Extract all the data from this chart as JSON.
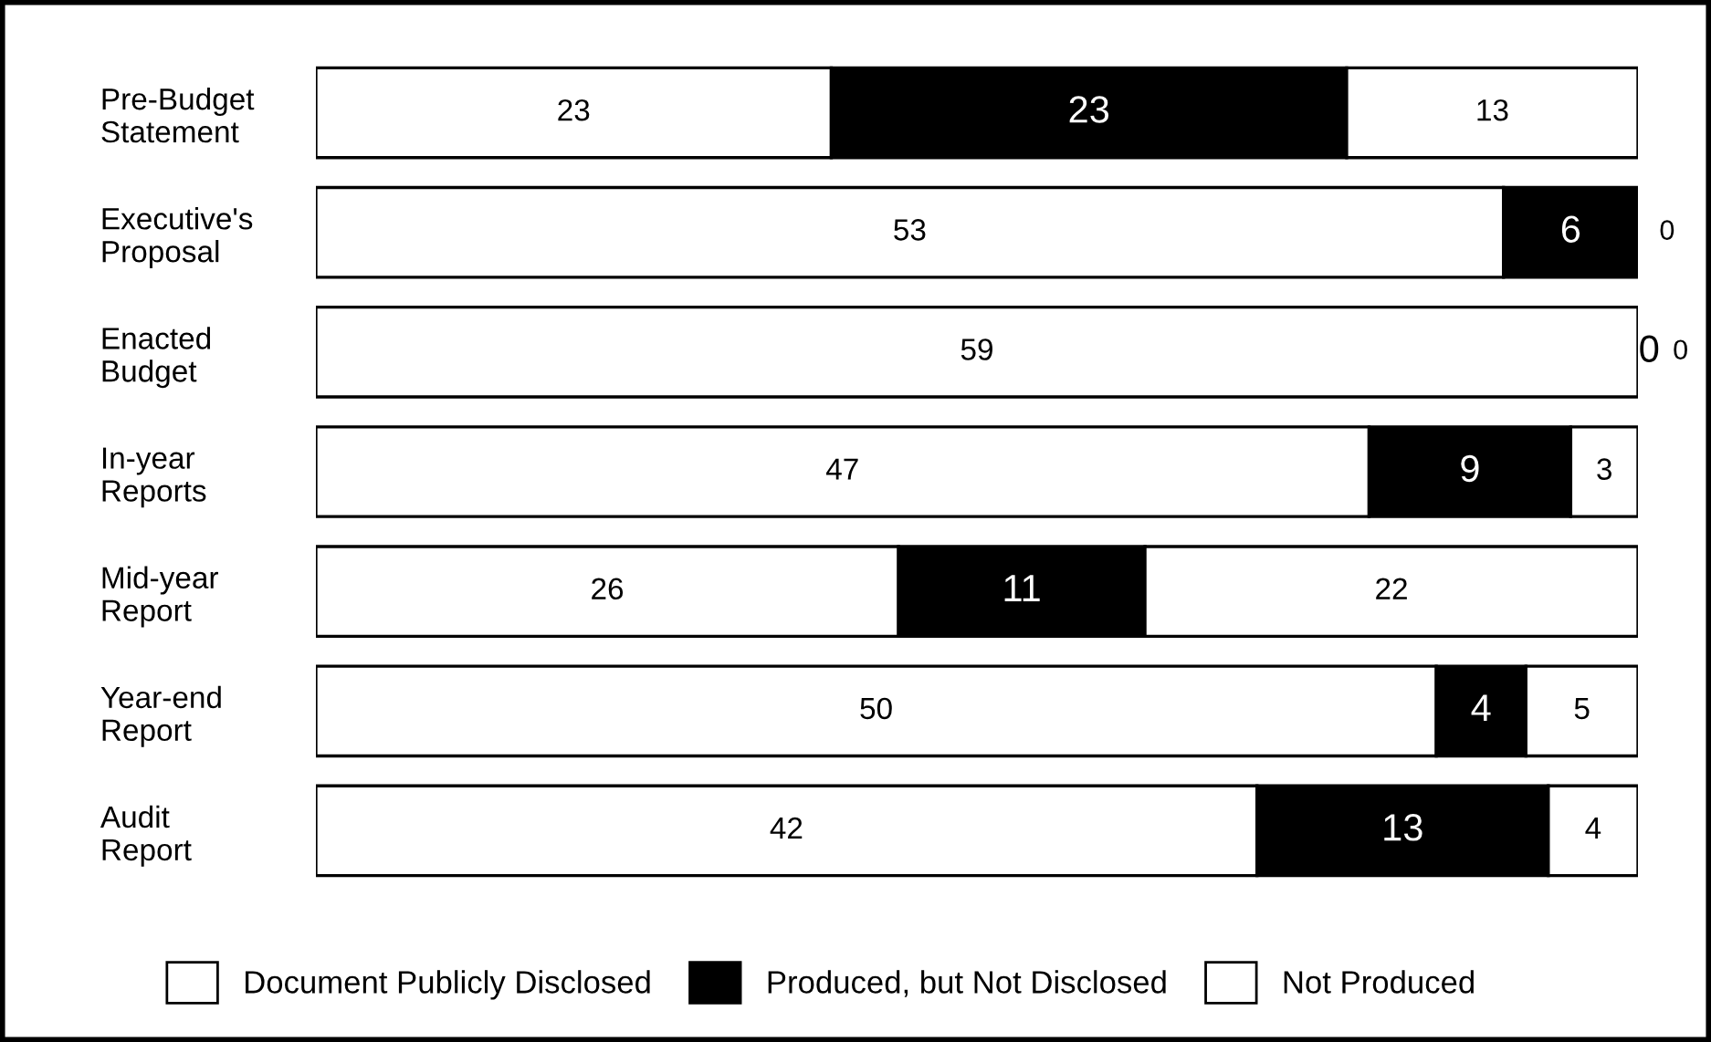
{
  "chart_data": {
    "type": "bar",
    "orientation": "horizontal",
    "stacked": true,
    "data_labels": true,
    "legend": "bottom",
    "grid": false,
    "tick_labels": "y",
    "categories": [
      "Pre-Budget\nStatement",
      "Executive's\nProposal",
      "Enacted\nBudget",
      "In-year\nReports",
      "Mid-year\nReport",
      "Year-end\nReport",
      "Audit\nReport"
    ],
    "series": [
      {
        "name": "Document Publicly Disclosed",
        "color": "#ffffff",
        "values": [
          23,
          53,
          59,
          47,
          26,
          50,
          42
        ]
      },
      {
        "name": "Produced, but Not Disclosed",
        "color": "#000000",
        "values": [
          23,
          6,
          0,
          9,
          11,
          4,
          13
        ]
      },
      {
        "name": "Not Produced",
        "color": "#ffffff",
        "values": [
          13,
          0,
          0,
          3,
          22,
          5,
          4
        ]
      }
    ]
  }
}
